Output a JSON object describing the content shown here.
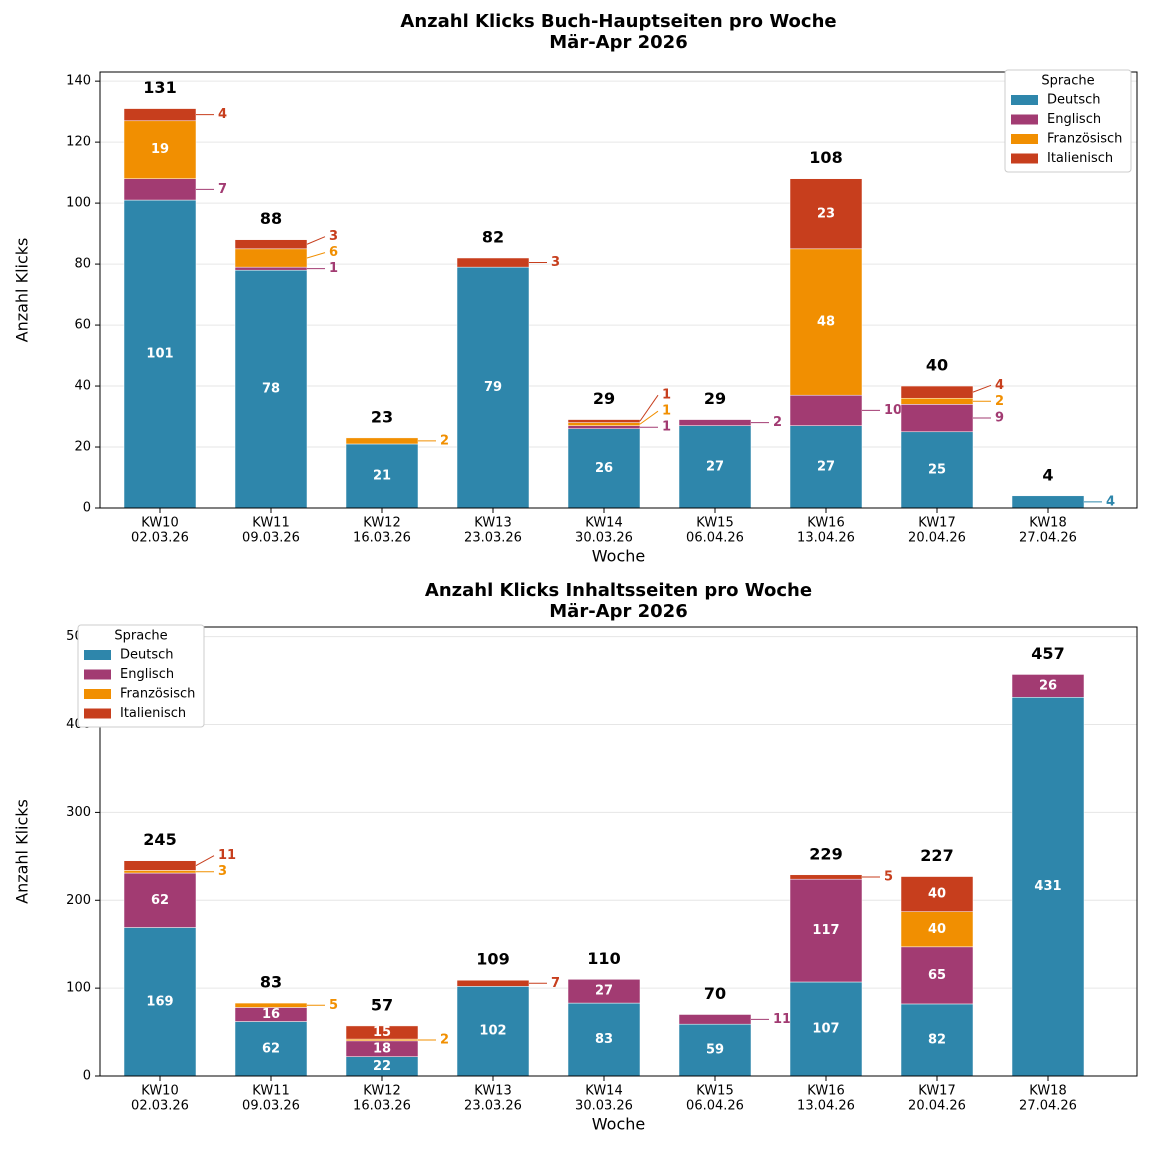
{
  "chart_data": [
    {
      "type": "stacked-bar",
      "title": "Anzahl Klicks Buch-Hauptseiten pro Woche",
      "subtitle": "Mär-Apr 2026",
      "x_label": "Woche",
      "y_label": "Anzahl Klicks",
      "categories": [
        [
          "KW10",
          "02.03.26"
        ],
        [
          "KW11",
          "09.03.26"
        ],
        [
          "KW12",
          "16.03.26"
        ],
        [
          "KW13",
          "23.03.26"
        ],
        [
          "KW14",
          "30.03.26"
        ],
        [
          "KW15",
          "06.04.26"
        ],
        [
          "KW16",
          "13.04.26"
        ],
        [
          "KW17",
          "20.04.26"
        ],
        [
          "KW18",
          "27.04.26"
        ]
      ],
      "series": [
        {
          "name": "Deutsch",
          "color": "#2e86ab",
          "values": [
            101,
            78,
            21,
            79,
            26,
            27,
            27,
            25,
            4
          ]
        },
        {
          "name": "Englisch",
          "color": "#a23b72",
          "values": [
            7,
            1,
            0,
            0,
            1,
            2,
            10,
            9,
            0
          ]
        },
        {
          "name": "Französisch",
          "color": "#f18f01",
          "values": [
            19,
            6,
            2,
            0,
            1,
            0,
            48,
            2,
            0
          ]
        },
        {
          "name": "Italienisch",
          "color": "#c73e1d",
          "values": [
            4,
            3,
            0,
            3,
            1,
            0,
            23,
            4,
            0
          ]
        }
      ],
      "totals": [
        131,
        88,
        23,
        82,
        29,
        29,
        108,
        40,
        4
      ],
      "ylim": [
        0,
        143
      ],
      "yticks": [
        0,
        20,
        40,
        60,
        80,
        100,
        120,
        140
      ],
      "grid": true,
      "legend_title": "Sprache",
      "legend": "upper right"
    },
    {
      "type": "stacked-bar",
      "title": "Anzahl Klicks Inhaltsseiten pro Woche",
      "subtitle": "Mär-Apr 2026",
      "x_label": "Woche",
      "y_label": "Anzahl Klicks",
      "categories": [
        [
          "KW10",
          "02.03.26"
        ],
        [
          "KW11",
          "09.03.26"
        ],
        [
          "KW12",
          "16.03.26"
        ],
        [
          "KW13",
          "23.03.26"
        ],
        [
          "KW14",
          "30.03.26"
        ],
        [
          "KW15",
          "06.04.26"
        ],
        [
          "KW16",
          "13.04.26"
        ],
        [
          "KW17",
          "20.04.26"
        ],
        [
          "KW18",
          "27.04.26"
        ]
      ],
      "series": [
        {
          "name": "Deutsch",
          "color": "#2e86ab",
          "values": [
            169,
            62,
            22,
            102,
            83,
            59,
            107,
            82,
            431
          ]
        },
        {
          "name": "Englisch",
          "color": "#a23b72",
          "values": [
            62,
            16,
            18,
            0,
            27,
            11,
            117,
            65,
            26
          ]
        },
        {
          "name": "Französisch",
          "color": "#f18f01",
          "values": [
            3,
            5,
            2,
            0,
            0,
            0,
            0,
            40,
            0
          ]
        },
        {
          "name": "Italienisch",
          "color": "#c73e1d",
          "values": [
            11,
            0,
            15,
            7,
            0,
            0,
            5,
            40,
            0
          ]
        }
      ],
      "totals": [
        245,
        83,
        57,
        109,
        110,
        70,
        229,
        227,
        457
      ],
      "ylim": [
        0,
        511
      ],
      "yticks": [
        0,
        100,
        200,
        300,
        400,
        500
      ],
      "grid": true,
      "legend_title": "Sprache",
      "legend": "upper left"
    }
  ]
}
